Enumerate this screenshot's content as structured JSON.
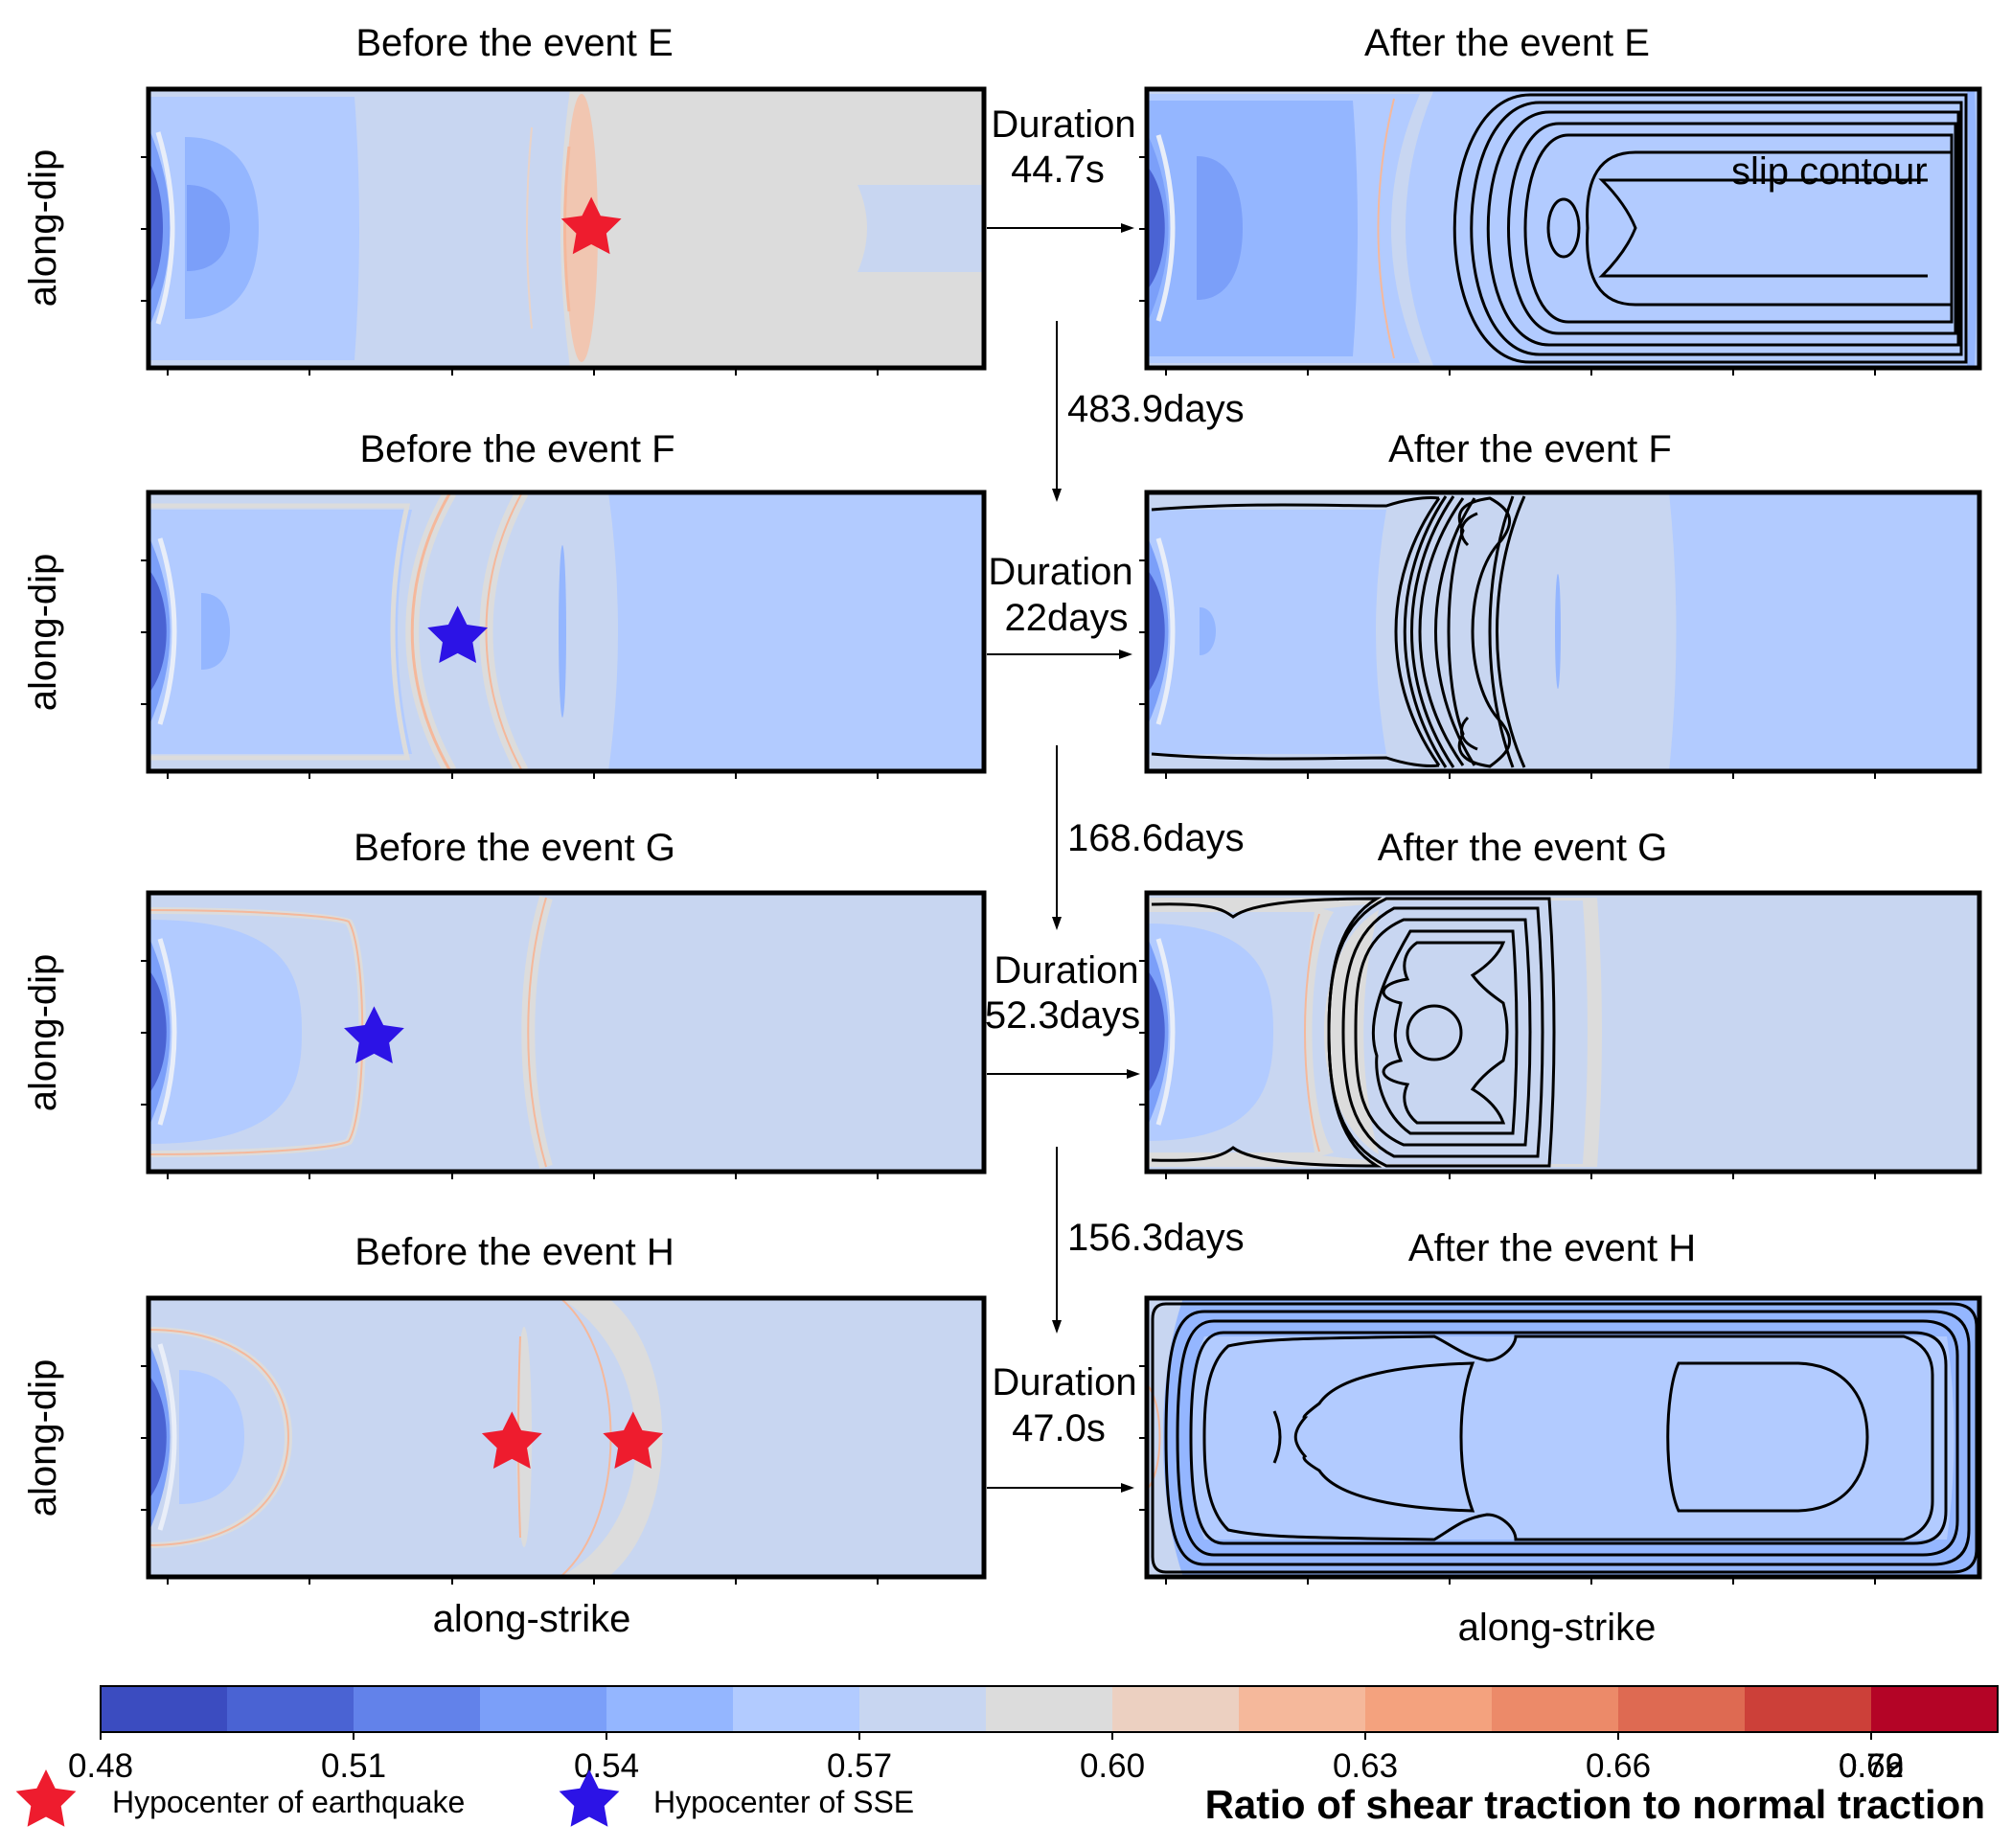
{
  "figure": {
    "panels": [
      {
        "id": "E",
        "before_title": "Before the event E",
        "after_title": "After the event E",
        "duration_label": "Duration",
        "duration_value": "44.7s",
        "hypocenters": [
          {
            "kind": "earthquake",
            "color": "#ee1c2e",
            "s": 0.53,
            "d": 0.5
          }
        ],
        "after_annotation": "slip contour",
        "interval_after": "483.9days"
      },
      {
        "id": "F",
        "before_title": "Before the event F",
        "after_title": "After the event F",
        "duration_label": "Duration",
        "duration_value": "22days",
        "hypocenters": [
          {
            "kind": "sse",
            "color": "#2c13e6",
            "s": 0.37,
            "d": 0.52
          }
        ],
        "interval_after": "168.6days"
      },
      {
        "id": "G",
        "before_title": "Before the event G",
        "after_title": "After the event G",
        "duration_label": "Duration",
        "duration_value": "52.3days",
        "hypocenters": [
          {
            "kind": "sse",
            "color": "#2c13e6",
            "s": 0.27,
            "d": 0.52
          }
        ],
        "interval_after": "156.3days"
      },
      {
        "id": "H",
        "before_title": "Before the event H",
        "after_title": "After the event H",
        "duration_label": "Duration",
        "duration_value": "47.0s",
        "hypocenters": [
          {
            "kind": "earthquake",
            "color": "#ee1c2e",
            "s": 0.435,
            "d": 0.52
          },
          {
            "kind": "earthquake",
            "color": "#ee1c2e",
            "s": 0.58,
            "d": 0.52
          }
        ],
        "interval_after": ""
      }
    ],
    "ylabel": "along-dip",
    "xlabel": "along-strike"
  },
  "chart_data": {
    "type": "heatmap",
    "title": "",
    "colorbar": {
      "label": "Ratio of shear traction to normal traction",
      "bins": [
        {
          "lo": 0.48,
          "hi": 0.495,
          "color": "#3b4cc0"
        },
        {
          "lo": 0.495,
          "hi": 0.51,
          "color": "#4a63d3"
        },
        {
          "lo": 0.51,
          "hi": 0.525,
          "color": "#6282ea"
        },
        {
          "lo": 0.525,
          "hi": 0.54,
          "color": "#7b9ff9"
        },
        {
          "lo": 0.54,
          "hi": 0.555,
          "color": "#94b6ff"
        },
        {
          "lo": 0.555,
          "hi": 0.57,
          "color": "#b2cbff"
        },
        {
          "lo": 0.57,
          "hi": 0.585,
          "color": "#c8d6f1"
        },
        {
          "lo": 0.585,
          "hi": 0.6,
          "color": "#dcdcdc"
        },
        {
          "lo": 0.6,
          "hi": 0.615,
          "color": "#ecd0c1"
        },
        {
          "lo": 0.615,
          "hi": 0.63,
          "color": "#f5b89b"
        },
        {
          "lo": 0.63,
          "hi": 0.645,
          "color": "#f4a27e"
        },
        {
          "lo": 0.645,
          "hi": 0.66,
          "color": "#ec8a69"
        },
        {
          "lo": 0.66,
          "hi": 0.675,
          "color": "#de6a52"
        },
        {
          "lo": 0.675,
          "hi": 0.69,
          "color": "#cc4039"
        },
        {
          "lo": 0.69,
          "hi": 0.705,
          "color": "#b40426"
        }
      ],
      "ticks": [
        0.48,
        0.51,
        0.54,
        0.57,
        0.6,
        0.63,
        0.66,
        0.69,
        0.72,
        0.76
      ],
      "tick_labels": [
        "0.48",
        "0.51",
        "0.54",
        "0.57",
        "0.60",
        "0.63",
        "0.66",
        "0.69",
        "0.72",
        "0.76"
      ]
    },
    "background_levels": {
      "before": [
        "0.60",
        "0.63",
        "0.63",
        "0.60"
      ],
      "after": [
        "0.60",
        "0.60",
        "0.60",
        "0.60"
      ]
    }
  },
  "legend": [
    {
      "label": "Hypocenter of earthquake",
      "color": "#ee1c2e"
    },
    {
      "label": "Hypocenter of SSE",
      "color": "#2c13e6"
    }
  ],
  "colors": {
    "bg_060": "#c8d6f1",
    "bg_063": "#dcdcdc",
    "blue_057": "#b2cbff",
    "blue_054": "#94b6ff",
    "blue_051": "#7b9ff9",
    "blue_048": "#4a63d3",
    "orange": "#f5b89b"
  }
}
